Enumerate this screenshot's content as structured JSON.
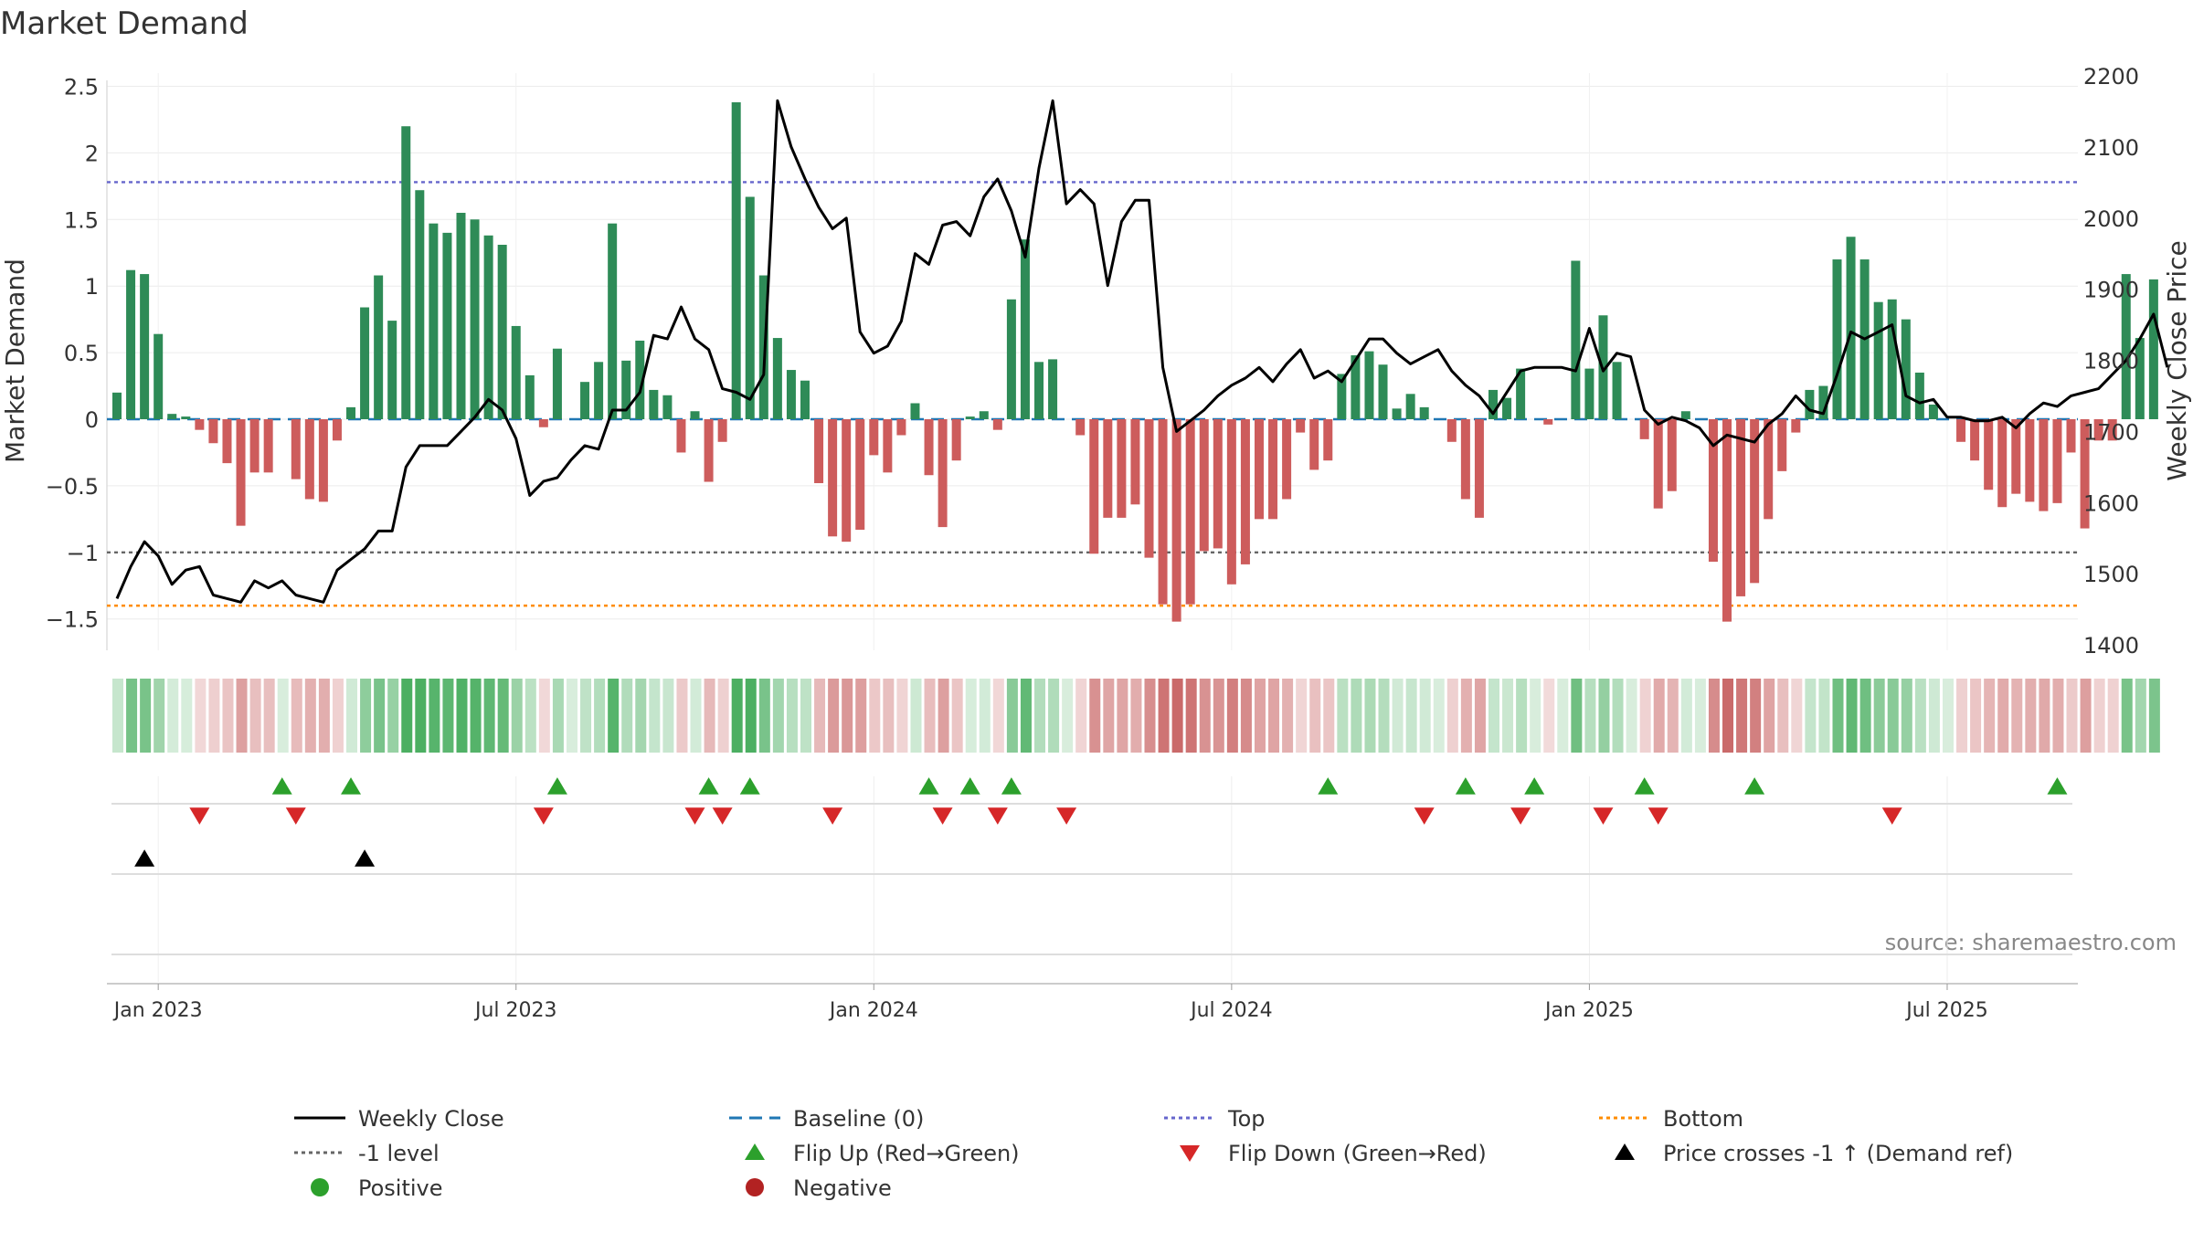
{
  "chart_data": {
    "type": "bar",
    "title": "Market Demand",
    "ylabel": "Market Demand",
    "y2label": "Weekly Close Price",
    "ylim": [
      -1.75,
      2.55
    ],
    "y2lim": [
      1390,
      2210
    ],
    "yticks": [
      2.5,
      2,
      1.5,
      1,
      0.5,
      0,
      -0.5,
      -1,
      -1.5
    ],
    "ytick_labels": [
      "2.5",
      "2",
      "1.5",
      "1",
      "0.5",
      "0",
      "−0.5",
      "−1",
      "−1.5"
    ],
    "y2ticks": [
      2200,
      2100,
      2000,
      1900,
      1800,
      1700,
      1600,
      1500,
      1400
    ],
    "y2tick_labels": [
      "2200",
      "2100",
      "2000",
      "1900",
      "1800",
      "1700",
      "1600",
      "1500",
      "1400"
    ],
    "xtick_labels": [
      "Jan 2023",
      "Jul 2023",
      "Jan 2024",
      "Jul 2024",
      "Jan 2025",
      "Jul 2025"
    ],
    "xtick_weeks": [
      3,
      29,
      55,
      81,
      107,
      133
    ],
    "source": "source: sharemaestro.com",
    "reference_lines": {
      "top": 1.78,
      "bottom": -1.4,
      "minus_one": -1.0,
      "baseline": 0
    },
    "series": [
      {
        "name": "Market Demand",
        "values": [
          0.2,
          1.12,
          1.09,
          0.64,
          0.04,
          0.02,
          -0.08,
          -0.18,
          -0.33,
          -0.8,
          -0.4,
          -0.4,
          0,
          -0.45,
          -0.6,
          -0.62,
          -0.16,
          0.09,
          0.84,
          1.08,
          0.74,
          2.2,
          1.72,
          1.47,
          1.4,
          1.55,
          1.5,
          1.38,
          1.31,
          0.7,
          0.33,
          -0.06,
          0.53,
          0,
          0.28,
          0.43,
          1.47,
          0.44,
          0.59,
          0.22,
          0.18,
          -0.25,
          0.06,
          -0.47,
          -0.17,
          2.38,
          1.67,
          1.08,
          0.61,
          0.37,
          0.29,
          -0.48,
          -0.88,
          -0.92,
          -0.83,
          -0.27,
          -0.4,
          -0.12,
          0.12,
          -0.42,
          -0.81,
          -0.31,
          0.02,
          0.06,
          -0.08,
          0.9,
          1.35,
          0.43,
          0.45,
          0,
          -0.12,
          -1.01,
          -0.74,
          -0.74,
          -0.64,
          -1.04,
          -1.39,
          -1.52,
          -1.39,
          -0.99,
          -0.97,
          -1.24,
          -1.09,
          -0.75,
          -0.75,
          -0.6,
          -0.1,
          -0.38,
          -0.31,
          0.34,
          0.48,
          0.51,
          0.41,
          0.08,
          0.19,
          0.09,
          0,
          -0.17,
          -0.6,
          -0.74,
          0.22,
          0.16,
          0.38,
          0,
          -0.04,
          0,
          1.19,
          0.38,
          0.78,
          0.43,
          0,
          -0.15,
          -0.67,
          -0.54,
          0.06,
          0,
          -1.07,
          -1.52,
          -1.33,
          -1.23,
          -0.75,
          -0.39,
          -0.1,
          0.22,
          0.25,
          1.2,
          1.37,
          1.2,
          0.88,
          0.9,
          0.75,
          0.35,
          0.11,
          0,
          -0.17,
          -0.31,
          -0.53,
          -0.66,
          -0.56,
          -0.62,
          -0.69,
          -0.63,
          -0.25,
          -0.82,
          -0.16,
          -0.16,
          1.09,
          0.61,
          1.05
        ]
      },
      {
        "name": "Weekly Close",
        "values": [
          1465,
          1510,
          1545,
          1525,
          1485,
          1505,
          1510,
          1470,
          1465,
          1460,
          1490,
          1480,
          1490,
          1470,
          1465,
          1460,
          1505,
          1520,
          1535,
          1560,
          1560,
          1650,
          1680,
          1680,
          1680,
          1700,
          1720,
          1745,
          1730,
          1690,
          1610,
          1630,
          1635,
          1660,
          1680,
          1675,
          1730,
          1730,
          1755,
          1835,
          1830,
          1875,
          1830,
          1815,
          1760,
          1755,
          1745,
          1780,
          2165,
          2100,
          2055,
          2015,
          1985,
          2000,
          1840,
          1810,
          1820,
          1855,
          1950,
          1935,
          1990,
          1995,
          1975,
          2030,
          2055,
          2010,
          1945,
          2070,
          2165,
          2020,
          2040,
          2020,
          1905,
          1995,
          2025,
          2025,
          1790,
          1700,
          1715,
          1730,
          1750,
          1765,
          1775,
          1790,
          1770,
          1795,
          1815,
          1775,
          1785,
          1770,
          1800,
          1830,
          1830,
          1810,
          1795,
          1805,
          1815,
          1785,
          1765,
          1750,
          1725,
          1755,
          1785,
          1790,
          1790,
          1790,
          1785,
          1845,
          1785,
          1810,
          1805,
          1730,
          1710,
          1720,
          1715,
          1705,
          1680,
          1695,
          1690,
          1685,
          1710,
          1725,
          1750,
          1730,
          1725,
          1780,
          1840,
          1830,
          1840,
          1850,
          1750,
          1740,
          1745,
          1720,
          1720,
          1715,
          1715,
          1720,
          1705,
          1725,
          1740,
          1735,
          1750,
          1755,
          1760,
          1780,
          1800,
          1830,
          1865,
          1790
        ]
      }
    ],
    "flip_up_weeks": [
      12,
      17,
      32,
      43,
      46,
      59,
      62,
      65,
      88,
      98,
      103,
      111,
      119,
      141
    ],
    "flip_down_weeks": [
      6,
      13,
      31,
      42,
      44,
      52,
      60,
      64,
      69,
      95,
      102,
      108,
      112,
      129
    ],
    "price_cross_weeks": [
      2,
      18
    ],
    "strip_colors": {
      "positive_base": "#4caf62",
      "negative_base": "#c86464"
    },
    "colors": {
      "positive_bar": "#2e8b57",
      "negative_bar": "#cd5c5c",
      "close_line": "#000000",
      "baseline": "#1f77b4",
      "top": "#6666cc",
      "bottom": "#ff8c00",
      "minus_one": "#666666",
      "flip_up": "#2ca02c",
      "flip_down": "#d62728",
      "cross": "#000000"
    },
    "legend": [
      {
        "label": "Weekly Close",
        "kind": "line-solid",
        "color": "#000000"
      },
      {
        "label": "Baseline (0)",
        "kind": "line-dash",
        "color": "#1f77b4"
      },
      {
        "label": "Top",
        "kind": "line-dot",
        "color": "#6666cc"
      },
      {
        "label": "Bottom",
        "kind": "line-dot",
        "color": "#ff8c00"
      },
      {
        "label": "-1 level",
        "kind": "line-dot",
        "color": "#666666"
      },
      {
        "label": "Flip Up (Red→Green)",
        "kind": "tri-up",
        "color": "#2ca02c"
      },
      {
        "label": "Flip Down (Green→Red)",
        "kind": "tri-down",
        "color": "#d62728"
      },
      {
        "label": "Price crosses -1 ↑ (Demand ref)",
        "kind": "tri-up",
        "color": "#000000"
      },
      {
        "label": "Positive",
        "kind": "dot",
        "color": "#2ca02c"
      },
      {
        "label": "Negative",
        "kind": "dot",
        "color": "#b22222"
      }
    ]
  }
}
